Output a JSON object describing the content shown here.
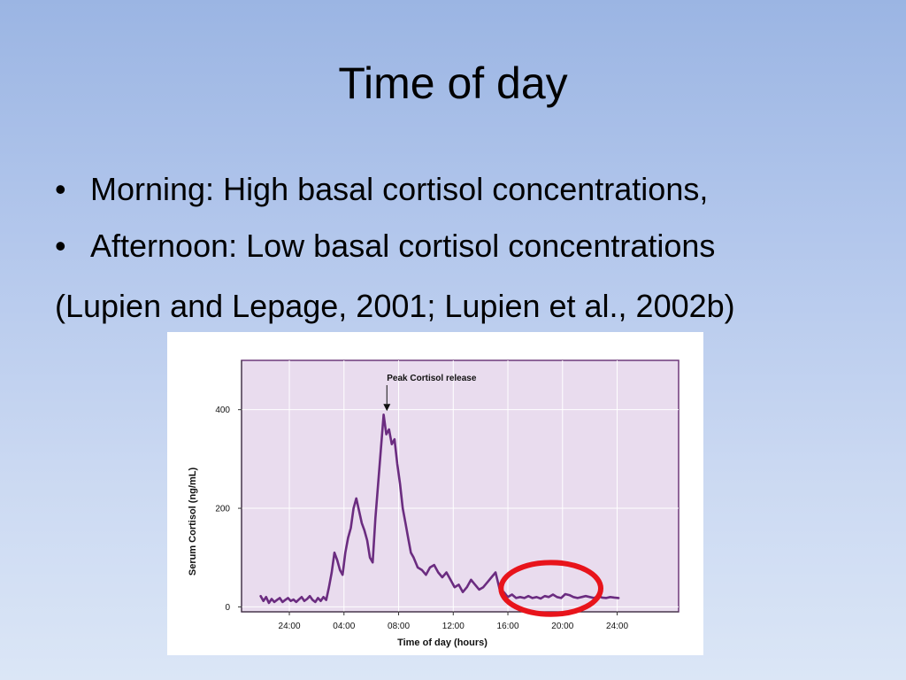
{
  "slide": {
    "title": "Time of day",
    "bullets": [
      "Morning: High basal cortisol concentrations,",
      "Afternoon: Low basal cortisol concentrations"
    ],
    "bullet_glyph": "•",
    "citation": "(Lupien and Lepage, 2001; Lupien et al., 2002b)"
  },
  "colors": {
    "plot_background": "#e9dcee",
    "plot_border": "#6e3a7a",
    "series_line": "#6b2c80",
    "highlight_ring": "#e8141b",
    "gridline": "#ffffff"
  },
  "chart_data": {
    "type": "line",
    "title": "",
    "xlabel": "Time of day (hours)",
    "ylabel": "Serum Cortisol (ng/mL)",
    "xlim": [
      -3.5,
      28.5
    ],
    "ylim": [
      -10,
      500
    ],
    "grid": true,
    "x_ticks": [
      0,
      4,
      8,
      12,
      16,
      20,
      24
    ],
    "x_tick_labels": [
      "24:00",
      "04:00",
      "08:00",
      "12:00",
      "16:00",
      "20:00",
      "24:00"
    ],
    "y_ticks": [
      0,
      200,
      400
    ],
    "y_tick_labels": [
      "0",
      "200",
      "400"
    ],
    "annotation": {
      "text": "Peak Cortisol release",
      "x": 7.4,
      "y": 390
    },
    "highlight": {
      "shape": "ellipse",
      "x_range": [
        15.5,
        22.8
      ],
      "y_range": [
        -15,
        90
      ]
    },
    "series": [
      {
        "name": "",
        "x": [
          -2.1,
          -1.9,
          -1.7,
          -1.5,
          -1.3,
          -1.1,
          -0.9,
          -0.7,
          -0.5,
          -0.3,
          -0.1,
          0.1,
          0.3,
          0.5,
          0.7,
          0.9,
          1.1,
          1.3,
          1.5,
          1.7,
          1.9,
          2.1,
          2.3,
          2.5,
          2.7,
          2.9,
          3.1,
          3.3,
          3.5,
          3.7,
          3.9,
          4.1,
          4.3,
          4.5,
          4.7,
          4.9,
          5.1,
          5.3,
          5.5,
          5.7,
          5.9,
          6.1,
          6.3,
          6.5,
          6.7,
          6.9,
          7.1,
          7.3,
          7.5,
          7.7,
          7.9,
          8.1,
          8.3,
          8.5,
          8.7,
          8.9,
          9.1,
          9.4,
          9.7,
          10.0,
          10.3,
          10.6,
          10.9,
          11.2,
          11.5,
          11.8,
          12.1,
          12.4,
          12.7,
          13.0,
          13.3,
          13.6,
          13.9,
          14.2,
          14.5,
          14.8,
          15.1,
          15.4,
          15.7,
          16.0,
          16.3,
          16.6,
          16.9,
          17.2,
          17.5,
          17.8,
          18.1,
          18.4,
          18.7,
          19.0,
          19.3,
          19.6,
          19.9,
          20.2,
          20.5,
          20.8,
          21.1,
          21.4,
          21.7,
          22.0,
          22.3,
          22.6,
          22.9,
          23.2,
          23.5,
          23.8,
          24.1
        ],
        "values": [
          22,
          12,
          20,
          8,
          16,
          10,
          14,
          18,
          10,
          14,
          18,
          12,
          15,
          10,
          15,
          20,
          12,
          16,
          22,
          14,
          10,
          18,
          12,
          20,
          14,
          40,
          70,
          110,
          95,
          75,
          65,
          110,
          140,
          160,
          200,
          220,
          195,
          170,
          155,
          135,
          100,
          90,
          180,
          250,
          320,
          390,
          350,
          360,
          330,
          340,
          290,
          250,
          200,
          170,
          140,
          110,
          100,
          80,
          75,
          65,
          80,
          85,
          70,
          60,
          70,
          55,
          40,
          45,
          30,
          40,
          55,
          45,
          35,
          40,
          50,
          60,
          70,
          35,
          30,
          20,
          25,
          18,
          20,
          18,
          22,
          18,
          20,
          17,
          22,
          20,
          25,
          20,
          18,
          26,
          24,
          20,
          18,
          20,
          22,
          20,
          18,
          22,
          19,
          18,
          20,
          19,
          18
        ]
      }
    ]
  }
}
